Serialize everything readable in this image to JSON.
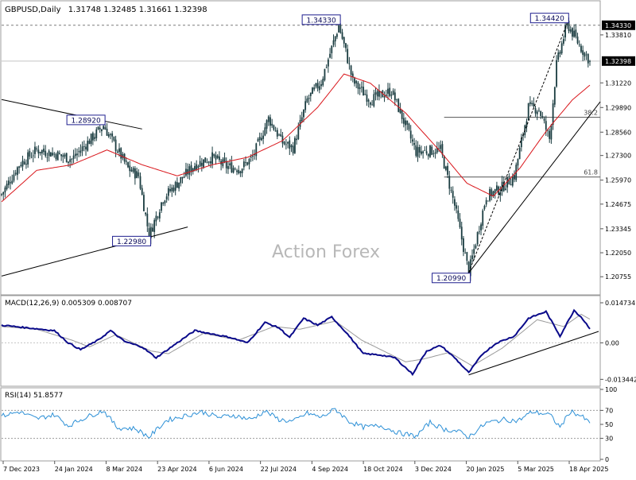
{
  "header": {
    "symbol": "GBPUSD,Daily",
    "ohlc": "1.31748 1.32485 1.31661 1.32398"
  },
  "watermark": "Action Forex",
  "colors": {
    "candle": "#1a3c40",
    "ma": "#d9161b",
    "macd_main": "#0a0a8a",
    "macd_signal": "#9a9a9a",
    "rsi": "#2b8fd6",
    "trend": "#000000",
    "price_tag_bg": "#000000",
    "label_border": "#1f1f8f"
  },
  "chart_data": [
    {
      "type": "line",
      "panel": "price",
      "ylim": [
        1.2025,
        1.3535
      ],
      "yticks": [
        "1.33810",
        "1.31220",
        "1.29890",
        "1.28560",
        "1.27300",
        "1.25970",
        "1.24675",
        "1.23345",
        "1.22050",
        "1.20755"
      ],
      "current_price": "1.32398",
      "high_tag": "1.34330",
      "x_labels": [
        "7 Dec 2023",
        "24 Jan 2024",
        "8 Mar 2024",
        "23 Apr 2024",
        "6 Jun 2024",
        "22 Jul 2024",
        "4 Sep 2024",
        "18 Oct 2024",
        "3 Dec 2024",
        "20 Jan 2025",
        "5 Mar 2025",
        "18 Apr 2025"
      ],
      "price_keypoints": [
        [
          0,
          1.252
        ],
        [
          10,
          1.268
        ],
        [
          20,
          1.276
        ],
        [
          30,
          1.274
        ],
        [
          40,
          1.271
        ],
        [
          50,
          1.281
        ],
        [
          58,
          1.2892
        ],
        [
          66,
          1.276
        ],
        [
          72,
          1.266
        ],
        [
          78,
          1.262
        ],
        [
          84,
          1.2298
        ],
        [
          92,
          1.25
        ],
        [
          100,
          1.258
        ],
        [
          110,
          1.268
        ],
        [
          120,
          1.272
        ],
        [
          128,
          1.267
        ],
        [
          136,
          1.266
        ],
        [
          143,
          1.272
        ],
        [
          152,
          1.293
        ],
        [
          160,
          1.28
        ],
        [
          166,
          1.277
        ],
        [
          174,
          1.303
        ],
        [
          182,
          1.313
        ],
        [
          188,
          1.331
        ],
        [
          192,
          1.3433
        ],
        [
          196,
          1.329
        ],
        [
          200,
          1.313
        ],
        [
          210,
          1.303
        ],
        [
          222,
          1.308
        ],
        [
          236,
          1.275
        ],
        [
          250,
          1.276
        ],
        [
          258,
          1.246
        ],
        [
          266,
          1.2099
        ],
        [
          276,
          1.251
        ],
        [
          284,
          1.255
        ],
        [
          292,
          1.262
        ],
        [
          300,
          1.299
        ],
        [
          306,
          1.298
        ],
        [
          312,
          1.282
        ],
        [
          316,
          1.322
        ],
        [
          322,
          1.3442
        ],
        [
          330,
          1.331
        ],
        [
          335,
          1.32398
        ]
      ],
      "ma_keypoints": [
        [
          0,
          1.248
        ],
        [
          20,
          1.265
        ],
        [
          40,
          1.268
        ],
        [
          60,
          1.276
        ],
        [
          80,
          1.268
        ],
        [
          100,
          1.262
        ],
        [
          120,
          1.268
        ],
        [
          140,
          1.272
        ],
        [
          160,
          1.281
        ],
        [
          180,
          1.299
        ],
        [
          195,
          1.317
        ],
        [
          210,
          1.312
        ],
        [
          230,
          1.296
        ],
        [
          250,
          1.275
        ],
        [
          265,
          1.258
        ],
        [
          280,
          1.251
        ],
        [
          295,
          1.266
        ],
        [
          310,
          1.286
        ],
        [
          325,
          1.303
        ],
        [
          335,
          1.311
        ]
      ],
      "annotations": [
        {
          "text": "1.28920",
          "bar": 58,
          "price": 1.2892,
          "place": "above"
        },
        {
          "text": "1.22980",
          "bar": 84,
          "price": 1.2298,
          "place": "below"
        },
        {
          "text": "1.34330",
          "bar": 192,
          "price": 1.3433,
          "place": "above"
        },
        {
          "text": "1.20990",
          "bar": 266,
          "price": 1.2099,
          "place": "below"
        },
        {
          "text": "1.34420",
          "bar": 322,
          "price": 1.3442,
          "place": "above"
        }
      ],
      "fib_levels": [
        {
          "label": "38.2",
          "price": 1.2936,
          "from_bar": 252
        },
        {
          "label": "61.8",
          "price": 1.2614,
          "from_bar": 252
        }
      ],
      "trendlines": [
        {
          "style": "solid",
          "points": [
            [
              0,
              1.3032
            ],
            [
              80,
              1.2873
            ]
          ]
        },
        {
          "style": "solid",
          "points": [
            [
              0,
              1.2079
            ],
            [
              106,
              1.2344
            ]
          ]
        },
        {
          "style": "solid",
          "points": [
            [
              266,
              1.2096
            ],
            [
              350,
              1.302
            ]
          ]
        },
        {
          "style": "dashed",
          "points": [
            [
              266,
              1.2099
            ],
            [
              322,
              1.3442
            ]
          ]
        }
      ]
    },
    {
      "type": "line",
      "panel": "macd",
      "title": "MACD(12,26,9) 0.005309 0.008707",
      "ylim": [
        -0.0148,
        0.0162
      ],
      "yticks": [
        "0.014734",
        "0.00",
        "-0.013442"
      ],
      "main_keypoints": [
        [
          0,
          0.0065
        ],
        [
          15,
          0.0055
        ],
        [
          30,
          0.0045
        ],
        [
          38,
          0.0
        ],
        [
          45,
          -0.0025
        ],
        [
          55,
          0.001
        ],
        [
          62,
          0.0045
        ],
        [
          70,
          0.0005
        ],
        [
          80,
          -0.0015
        ],
        [
          88,
          -0.0055
        ],
        [
          100,
          0.0
        ],
        [
          110,
          0.0045
        ],
        [
          122,
          0.003
        ],
        [
          130,
          0.002
        ],
        [
          140,
          0.0
        ],
        [
          150,
          0.0075
        ],
        [
          158,
          0.0055
        ],
        [
          164,
          0.002
        ],
        [
          172,
          0.009
        ],
        [
          180,
          0.0065
        ],
        [
          188,
          0.0095
        ],
        [
          196,
          0.004
        ],
        [
          206,
          -0.004
        ],
        [
          216,
          -0.0045
        ],
        [
          224,
          -0.0055
        ],
        [
          234,
          -0.0115
        ],
        [
          242,
          -0.003
        ],
        [
          250,
          -0.001
        ],
        [
          258,
          -0.0055
        ],
        [
          266,
          -0.011
        ],
        [
          274,
          -0.004
        ],
        [
          282,
          0.0
        ],
        [
          292,
          0.0025
        ],
        [
          300,
          0.009
        ],
        [
          310,
          0.0115
        ],
        [
          318,
          0.0025
        ],
        [
          326,
          0.012
        ],
        [
          330,
          0.0095
        ],
        [
          335,
          0.0053
        ]
      ],
      "signal_keypoints": [
        [
          0,
          0.006
        ],
        [
          20,
          0.005
        ],
        [
          40,
          0.001
        ],
        [
          50,
          -0.0015
        ],
        [
          65,
          0.003
        ],
        [
          85,
          -0.003
        ],
        [
          95,
          -0.004
        ],
        [
          115,
          0.0035
        ],
        [
          135,
          0.001
        ],
        [
          155,
          0.006
        ],
        [
          170,
          0.005
        ],
        [
          190,
          0.008
        ],
        [
          205,
          0.001
        ],
        [
          230,
          -0.007
        ],
        [
          240,
          -0.006
        ],
        [
          255,
          -0.0035
        ],
        [
          268,
          -0.0085
        ],
        [
          285,
          -0.002
        ],
        [
          305,
          0.0085
        ],
        [
          320,
          0.006
        ],
        [
          330,
          0.0105
        ],
        [
          335,
          0.0087
        ]
      ],
      "trendline": [
        [
          266,
          -0.0118
        ],
        [
          340,
          0.0042
        ]
      ]
    },
    {
      "type": "line",
      "panel": "rsi",
      "title": "RSI(14) 51.8577",
      "ylim": [
        0,
        100
      ],
      "yticks": [
        "100",
        "70",
        "50",
        "30",
        "0"
      ],
      "levels": [
        70,
        30
      ],
      "keypoints": [
        [
          0,
          62
        ],
        [
          10,
          68
        ],
        [
          20,
          58
        ],
        [
          30,
          64
        ],
        [
          38,
          48
        ],
        [
          46,
          58
        ],
        [
          58,
          70
        ],
        [
          66,
          45
        ],
        [
          76,
          44
        ],
        [
          84,
          32
        ],
        [
          94,
          56
        ],
        [
          104,
          62
        ],
        [
          114,
          68
        ],
        [
          124,
          60
        ],
        [
          132,
          63
        ],
        [
          142,
          57
        ],
        [
          150,
          69
        ],
        [
          158,
          57
        ],
        [
          166,
          54
        ],
        [
          174,
          66
        ],
        [
          182,
          60
        ],
        [
          190,
          72
        ],
        [
          198,
          54
        ],
        [
          206,
          46
        ],
        [
          216,
          48
        ],
        [
          226,
          38
        ],
        [
          236,
          33
        ],
        [
          244,
          53
        ],
        [
          252,
          43
        ],
        [
          260,
          40
        ],
        [
          266,
          32
        ],
        [
          276,
          52
        ],
        [
          286,
          57
        ],
        [
          294,
          55
        ],
        [
          302,
          68
        ],
        [
          312,
          64
        ],
        [
          318,
          46
        ],
        [
          324,
          69
        ],
        [
          330,
          62
        ],
        [
          335,
          51.8577
        ]
      ]
    }
  ]
}
